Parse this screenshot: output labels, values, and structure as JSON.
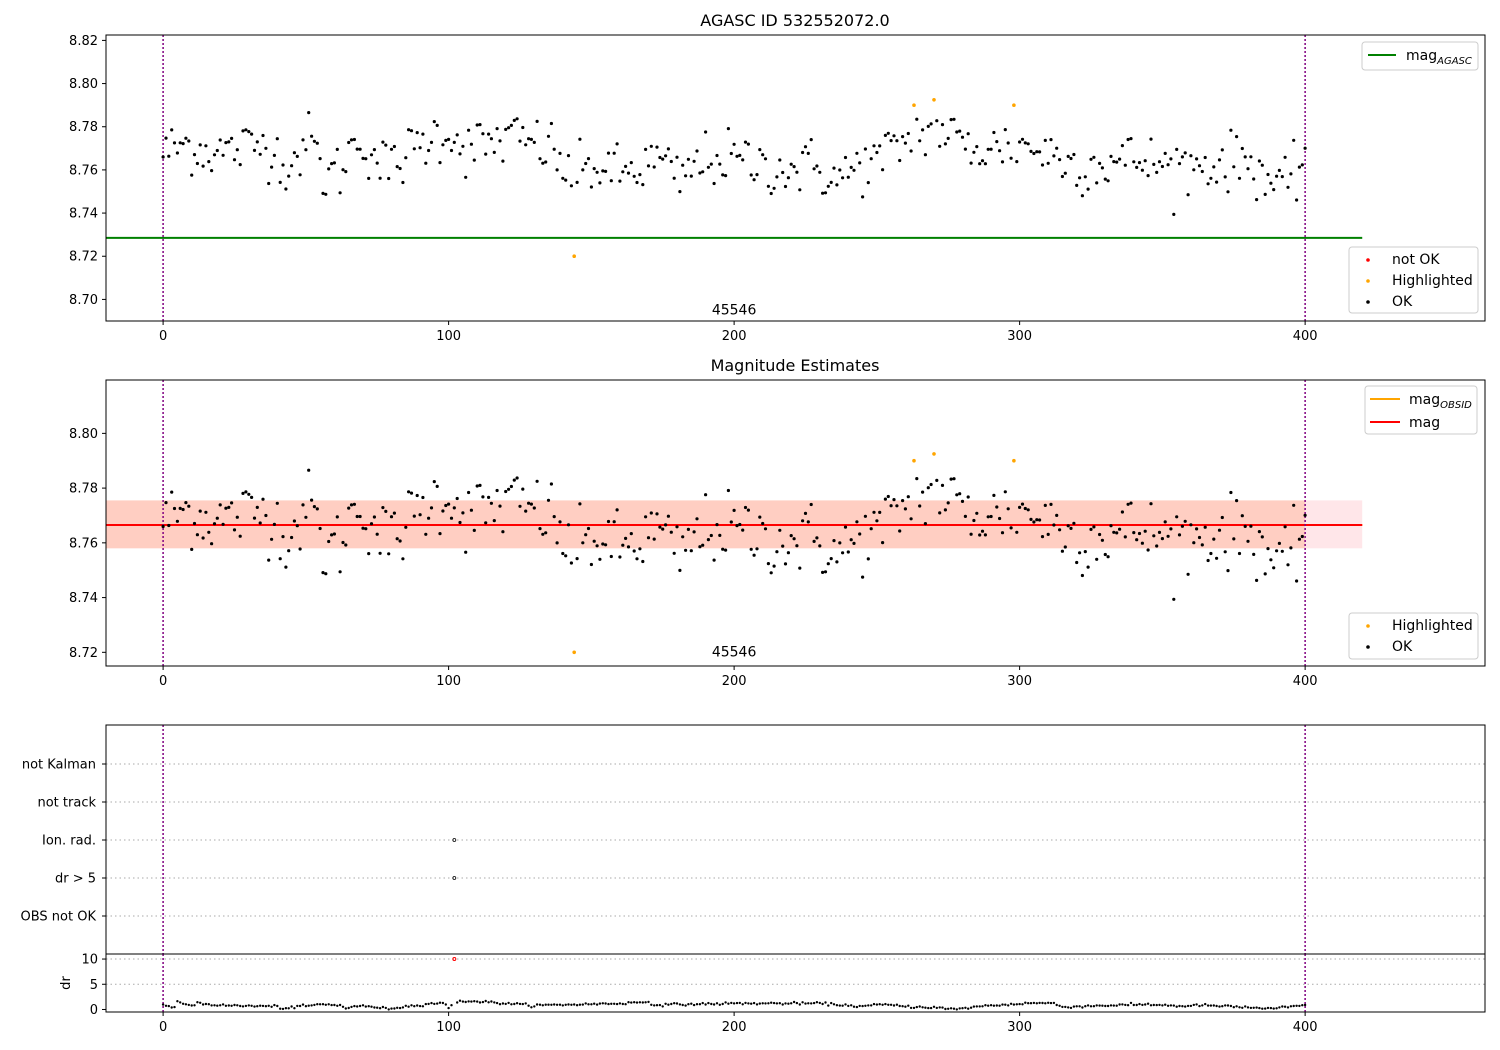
{
  "chart_data": [
    {
      "id": "agasc",
      "type": "scatter",
      "title": "AGASC ID 532552072.0",
      "xlim": [
        -20,
        463
      ],
      "ylim": [
        8.69,
        8.8225
      ],
      "xticks": [
        0,
        100,
        200,
        300,
        400
      ],
      "yticks": [
        8.7,
        8.72,
        8.74,
        8.76,
        8.78,
        8.8,
        8.82
      ],
      "ytick_labels": [
        "8.70",
        "8.72",
        "8.74",
        "8.76",
        "8.78",
        "8.80",
        "8.82"
      ],
      "obsid_boundaries": [
        0,
        400
      ],
      "obsid_label": {
        "text": "45546",
        "x": 200,
        "y": 8.693
      },
      "reference_line": {
        "name": "mag",
        "subscript": "AGASC",
        "y": 8.7285,
        "x0": -20,
        "x1": 420,
        "color": "#008000"
      },
      "legend_top": {
        "position": "top-right",
        "entries": [
          {
            "text": "mag",
            "sub": "AGASC",
            "kind": "line",
            "color": "#008000"
          }
        ]
      },
      "legend_bottom": {
        "position": "bottom-right",
        "entries": [
          {
            "text": "not OK",
            "kind": "dot",
            "color": "#ff0000"
          },
          {
            "text": "Highlighted",
            "kind": "dot",
            "color": "#ffa500"
          },
          {
            "text": "OK",
            "kind": "dot",
            "color": "#000000"
          }
        ]
      },
      "series": [
        {
          "name": "Highlighted",
          "color": "#ffa500",
          "points": [
            [
              144,
              8.72
            ],
            [
              263,
              8.79
            ],
            [
              270,
              8.7925
            ],
            [
              298,
              8.79
            ]
          ]
        }
      ],
      "ok_series": "shared_ok"
    },
    {
      "id": "estimates",
      "type": "scatter",
      "title": "Magnitude Estimates",
      "xlim": [
        -20,
        463
      ],
      "ylim": [
        8.715,
        8.8195
      ],
      "xticks": [
        0,
        100,
        200,
        300,
        400
      ],
      "yticks": [
        8.72,
        8.74,
        8.76,
        8.78,
        8.8
      ],
      "ytick_labels": [
        "8.72",
        "8.74",
        "8.76",
        "8.78",
        "8.80"
      ],
      "obsid_boundaries": [
        0,
        400
      ],
      "obsid_label": {
        "text": "45546",
        "x": 200,
        "y": 8.7185
      },
      "mag_line": {
        "name": "mag",
        "y": 8.7665,
        "x0": -20,
        "x1": 420,
        "color": "#ff0000"
      },
      "mag_band": {
        "y0": 8.758,
        "y1": 8.7755,
        "x0": -20,
        "x1": 420,
        "color": "#ffb6c1"
      },
      "obsid_line": {
        "name": "mag",
        "subscript": "OBSID",
        "y": 8.7665,
        "x0": -20,
        "x1": 420,
        "color": "#ffa500"
      },
      "obsid_band": {
        "y0": 8.758,
        "y1": 8.7755,
        "x0": -20,
        "x1": 400,
        "color": "#ffa07a"
      },
      "legend_top": {
        "position": "top-right",
        "entries": [
          {
            "text": "mag",
            "sub": "OBSID",
            "kind": "line",
            "color": "#ffa500"
          },
          {
            "text": "mag",
            "sub": "",
            "kind": "line",
            "color": "#ff0000"
          }
        ]
      },
      "legend_bottom": {
        "position": "bottom-right",
        "entries": [
          {
            "text": "Highlighted",
            "kind": "dot",
            "color": "#ffa500"
          },
          {
            "text": "OK",
            "kind": "dot",
            "color": "#000000"
          }
        ]
      },
      "series": [
        {
          "name": "Highlighted",
          "color": "#ffa500",
          "points": [
            [
              144,
              8.72
            ],
            [
              263,
              8.79
            ],
            [
              270,
              8.7925
            ],
            [
              298,
              8.79
            ]
          ]
        }
      ],
      "ok_series": "shared_ok"
    },
    {
      "id": "flags",
      "type": "scatter",
      "xlim": [
        -20,
        463
      ],
      "categories": [
        "OBS not OK",
        "dr > 5",
        "Ion. rad.",
        "not track",
        "not Kalman"
      ],
      "obsid_boundaries": [
        0,
        400
      ],
      "series": [
        {
          "name": "dr > 5",
          "color": "#000000",
          "points": [
            [
              102,
              1
            ]
          ]
        },
        {
          "name": "Ion. rad.",
          "color": "#000000",
          "points": [
            [
              102,
              2
            ]
          ]
        }
      ]
    },
    {
      "id": "dr",
      "type": "scatter",
      "ylabel": "dr",
      "xlim": [
        -20,
        463
      ],
      "ylim": [
        -0.5,
        11
      ],
      "xticks": [
        0,
        100,
        200,
        300,
        400
      ],
      "yticks": [
        0,
        5,
        10
      ],
      "ytick_labels": [
        "0",
        "5",
        "10"
      ],
      "obsid_boundaries": [
        0,
        400
      ],
      "series": [
        {
          "name": "dr > 5",
          "color": "#ff0000",
          "points": [
            [
              102,
              10
            ]
          ]
        }
      ],
      "dr_profile": [
        [
          0,
          1.0
        ],
        [
          2,
          0.6
        ],
        [
          4,
          0.2
        ],
        [
          5,
          1.5
        ],
        [
          10,
          0.8
        ],
        [
          12,
          1.3
        ],
        [
          20,
          0.8
        ],
        [
          40,
          0.6
        ],
        [
          42,
          0.2
        ],
        [
          55,
          1.0
        ],
        [
          62,
          0.8
        ],
        [
          64,
          0.3
        ],
        [
          68,
          0.7
        ],
        [
          76,
          0.4
        ],
        [
          78,
          0.1
        ],
        [
          88,
          0.8
        ],
        [
          98,
          1.4
        ],
        [
          100,
          0.3
        ],
        [
          104,
          1.7
        ],
        [
          110,
          1.6
        ],
        [
          130,
          0.8
        ],
        [
          160,
          1.2
        ],
        [
          170,
          1.5
        ],
        [
          172,
          0.9
        ],
        [
          200,
          1.2
        ],
        [
          230,
          1.2
        ],
        [
          245,
          0.6
        ],
        [
          252,
          1.0
        ],
        [
          260,
          0.6
        ],
        [
          270,
          0.4
        ],
        [
          278,
          0.0
        ],
        [
          285,
          0.6
        ],
        [
          305,
          1.3
        ],
        [
          312,
          1.2
        ],
        [
          315,
          0.5
        ],
        [
          330,
          0.8
        ],
        [
          345,
          1.0
        ],
        [
          360,
          0.6
        ],
        [
          362,
          0.9
        ],
        [
          380,
          0.4
        ],
        [
          390,
          0.1
        ],
        [
          392,
          0.4
        ],
        [
          400,
          0.8
        ]
      ]
    }
  ],
  "shared_ok_profile": [
    [
      0,
      8.768
    ],
    [
      4,
      8.77
    ],
    [
      8,
      8.772
    ],
    [
      12,
      8.77
    ],
    [
      20,
      8.768
    ],
    [
      28,
      8.77
    ],
    [
      36,
      8.772
    ],
    [
      44,
      8.762
    ],
    [
      52,
      8.775
    ],
    [
      56,
      8.757
    ],
    [
      62,
      8.76
    ],
    [
      68,
      8.775
    ],
    [
      74,
      8.766
    ],
    [
      80,
      8.76
    ],
    [
      86,
      8.768
    ],
    [
      94,
      8.775
    ],
    [
      100,
      8.778
    ],
    [
      106,
      8.77
    ],
    [
      114,
      8.772
    ],
    [
      122,
      8.775
    ],
    [
      130,
      8.772
    ],
    [
      136,
      8.77
    ],
    [
      140,
      8.76
    ],
    [
      146,
      8.758
    ],
    [
      152,
      8.762
    ],
    [
      158,
      8.758
    ],
    [
      166,
      8.76
    ],
    [
      174,
      8.765
    ],
    [
      180,
      8.755
    ],
    [
      190,
      8.765
    ],
    [
      200,
      8.765
    ],
    [
      210,
      8.762
    ],
    [
      220,
      8.76
    ],
    [
      228,
      8.762
    ],
    [
      236,
      8.755
    ],
    [
      244,
      8.762
    ],
    [
      252,
      8.765
    ],
    [
      258,
      8.772
    ],
    [
      266,
      8.778
    ],
    [
      274,
      8.778
    ],
    [
      282,
      8.77
    ],
    [
      290,
      8.77
    ],
    [
      300,
      8.772
    ],
    [
      310,
      8.768
    ],
    [
      320,
      8.762
    ],
    [
      330,
      8.763
    ],
    [
      340,
      8.765
    ],
    [
      350,
      8.762
    ],
    [
      360,
      8.762
    ],
    [
      370,
      8.763
    ],
    [
      380,
      8.765
    ],
    [
      388,
      8.755
    ],
    [
      394,
      8.75
    ],
    [
      398,
      8.762
    ],
    [
      400,
      8.77
    ]
  ]
}
